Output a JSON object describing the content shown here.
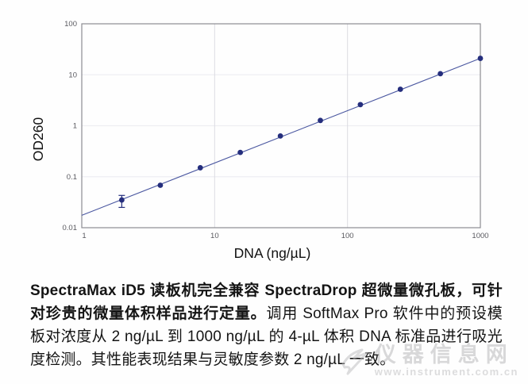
{
  "chart_data": {
    "type": "scatter",
    "title": "",
    "xlabel": "DNA (ng/µL)",
    "ylabel": "OD260",
    "x_scale": "log",
    "y_scale": "log",
    "xlim": [
      1,
      1000
    ],
    "ylim": [
      0.01,
      100
    ],
    "x_ticks": [
      1,
      10,
      100,
      1000
    ],
    "x_tick_labels": [
      "1",
      "10",
      "100",
      "1000"
    ],
    "y_ticks": [
      0.01,
      0.1,
      1,
      10,
      100
    ],
    "y_tick_labels": [
      "0.01",
      "0.1",
      "1",
      "10",
      "100"
    ],
    "grid": true,
    "legend": "none",
    "x": [
      2,
      3.9,
      7.8,
      15.6,
      31.25,
      62.5,
      125,
      250,
      500,
      1000
    ],
    "y": [
      0.035,
      0.068,
      0.15,
      0.3,
      0.63,
      1.27,
      2.6,
      5.2,
      10.5,
      21
    ],
    "error_bars": [
      {
        "index": 0,
        "low": 0.025,
        "high": 0.043
      }
    ],
    "fit_line": {
      "x": [
        1,
        1000
      ],
      "y": [
        0.0175,
        21
      ]
    },
    "point_color": "#252e7d",
    "line_color": "#4a57a0",
    "border_color": "#8c8c92",
    "vgrid_color": "#dcdce2",
    "hgrid_color": "#eeeef2",
    "tick_color": "#5a5a60",
    "axis_label_color": "#111111"
  },
  "caption": {
    "bold": "SpectraMax iD5 读板机完全兼容 SpectraDrop 超微量微孔板，可针对珍贵的微量体积样品进行定量。",
    "regular": "调用 SoftMax Pro 软件中的预设模板对浓度从 2 ng/µL 到 1000 ng/µL 的 4-µL 体积 DNA 标准品进行吸光度检测。其性能表现结果与灵敏度参数 2 ng/µL 一致。"
  },
  "watermark": {
    "site_name": "仪器信息网",
    "site_url": "www.instrument.com.cn"
  }
}
